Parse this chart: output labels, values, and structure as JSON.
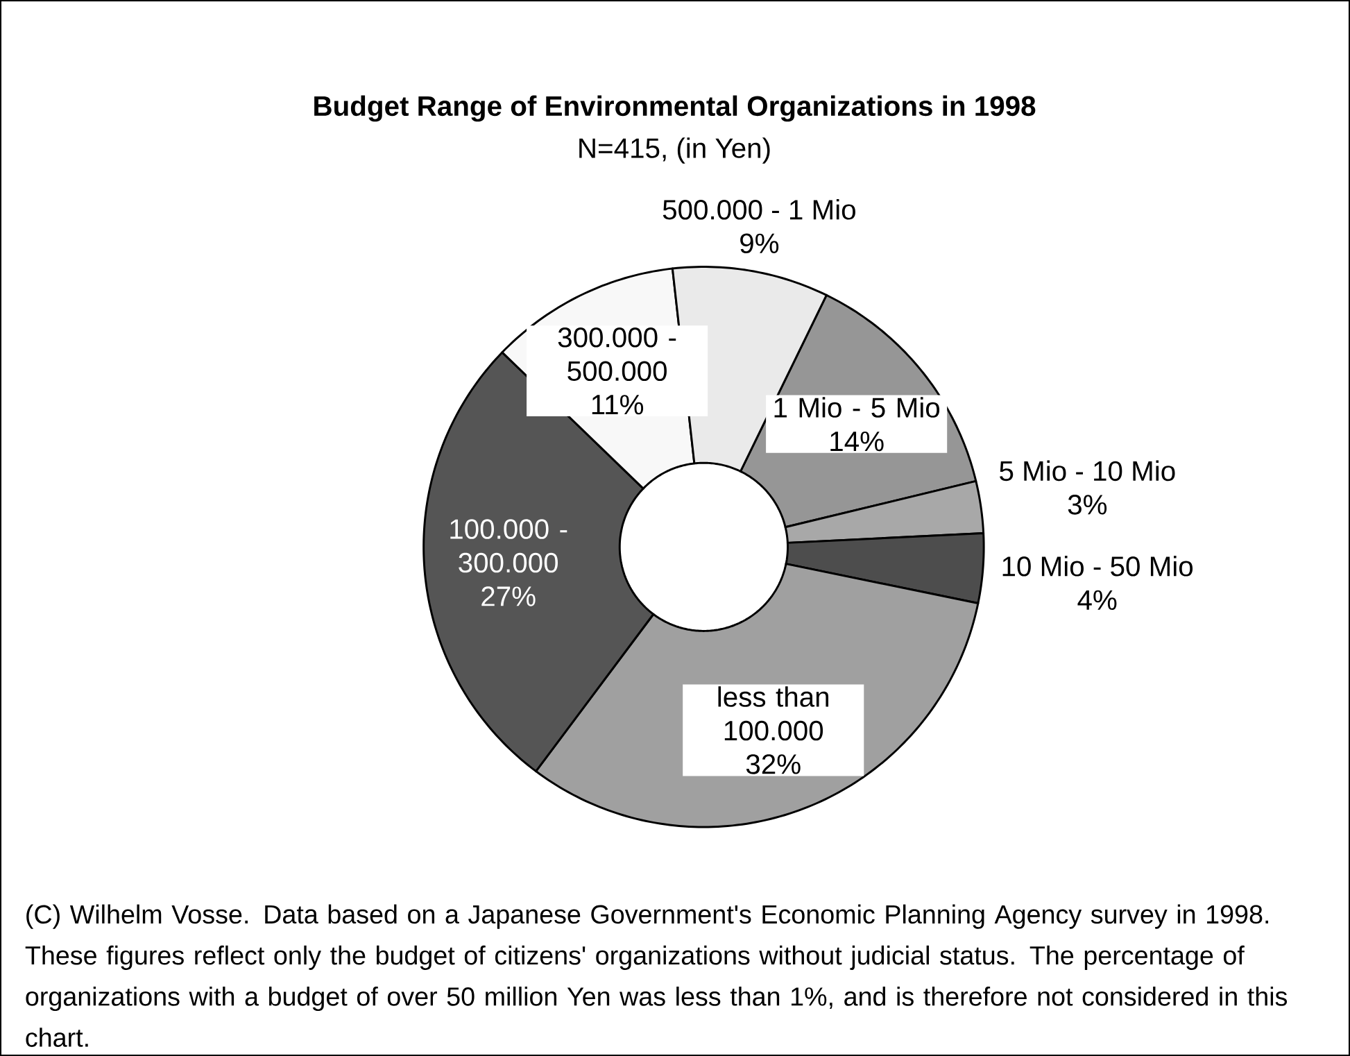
{
  "chart_data": {
    "type": "donut",
    "title": "Budget Range of Environmental Organizations in 1998",
    "subtitle": "N=415, (in Yen)",
    "categories": [
      "1 Mio - 5 Mio",
      "5 Mio - 10 Mio",
      "10 Mio - 50 Mio",
      "less than 100.000",
      "100.000 - 300.000",
      "300.000 - 500.000",
      "500.000 - 1 Mio"
    ],
    "values": [
      14,
      3,
      4,
      32,
      27,
      11,
      9
    ],
    "value_labels": [
      "14%",
      "3%",
      "4%",
      "32%",
      "27%",
      "11%",
      "9%"
    ],
    "colors": [
      "#969696",
      "#a8a8a8",
      "#4d4d4d",
      "#a0a0a0",
      "#555555",
      "#f8f8f8",
      "#eaeaea"
    ],
    "annotations": [
      "(C) Wilhelm Vosse. Data based on a Japanese Government's Economic Planning Agency survey in 1998. These figures reflect only the budget of citizens' organizations without judicial status. The percentage of organizations with a budget of over 50 million Yen was less than 1%, and is therefore not considered in this chart."
    ]
  }
}
